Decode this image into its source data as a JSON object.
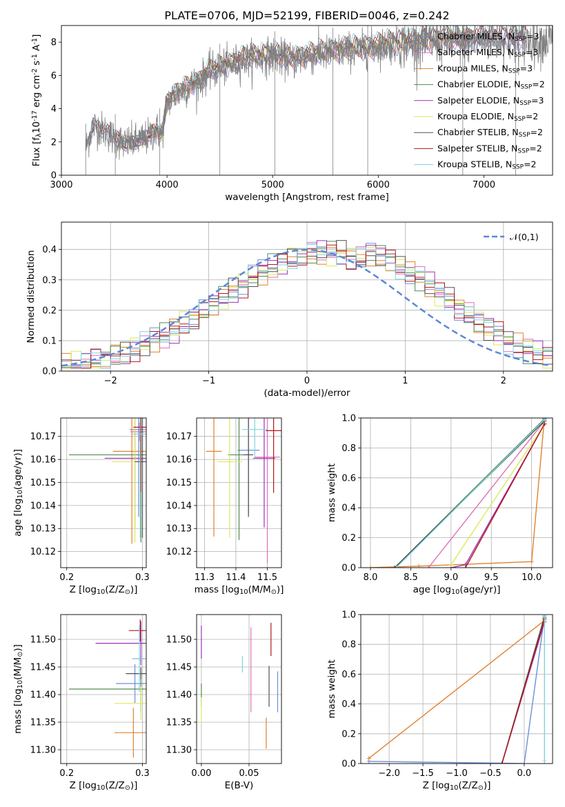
{
  "title": "PLATE=0706, MJD=52199, FIBERID=0046, z=0.242",
  "series": [
    {
      "name": "Chabrier MILES, N$_{SSP}$=3",
      "color": "#6b8ed8"
    },
    {
      "name": "Salpeter MILES, N$_{SSP}$=3",
      "color": "#e070b4"
    },
    {
      "name": "Kroupa MILES, N$_{SSP}$=3",
      "color": "#e0812e"
    },
    {
      "name": "Chabrier ELODIE, N$_{SSP}$=2",
      "color": "#4f8a52"
    },
    {
      "name": "Salpeter ELODIE, N$_{SSP}$=3",
      "color": "#9c30b8"
    },
    {
      "name": "Kroupa ELODIE, N$_{SSP}$=2",
      "color": "#d9ea5a"
    },
    {
      "name": "Chabrier STELIB, N$_{SSP}$=2",
      "color": "#505050"
    },
    {
      "name": "Salpeter STELIB, N$_{SSP}$=2",
      "color": "#b01818"
    },
    {
      "name": "Kroupa STELIB, N$_{SSP}$=2",
      "color": "#7fd4e3"
    }
  ],
  "chart_data": [
    {
      "id": "spectrum",
      "type": "line",
      "xlabel": "wavelength [Angstrom, rest frame]",
      "ylabel": "Flux [f$_{\\lambda}$10$^{-17}$ erg cm$^{-2}$ s$^{-1}$ A$^{-1}$]",
      "xlim": [
        3000,
        7650
      ],
      "ylim": [
        0,
        9
      ],
      "xticks": [
        3000,
        4000,
        5000,
        6000,
        7000
      ],
      "yticks": [
        0,
        2,
        4,
        6,
        8
      ],
      "grid": false,
      "legend": "right",
      "data_color": "#808080",
      "continuum": {
        "x": [
          3230,
          3300,
          3400,
          3500,
          3600,
          3700,
          3800,
          3900,
          3950,
          4000,
          4100,
          4200,
          4300,
          4400,
          4500,
          4600,
          4700,
          4800,
          4900,
          5000,
          5100,
          5200,
          5300,
          5400,
          5500,
          5600,
          5700,
          5800,
          5900,
          6000,
          6100,
          6200,
          6300,
          6400,
          6500,
          6600,
          6700,
          6800,
          6900,
          7000,
          7100,
          7200,
          7300,
          7400
        ],
        "y": [
          1.6,
          3.0,
          2.7,
          2.2,
          1.9,
          2.0,
          2.2,
          2.7,
          2.4,
          4.4,
          4.9,
          5.3,
          5.6,
          6.2,
          6.4,
          6.6,
          6.9,
          7.0,
          7.1,
          7.2,
          7.0,
          6.9,
          7.1,
          7.2,
          7.3,
          7.4,
          7.5,
          7.5,
          7.6,
          7.7,
          7.8,
          7.9,
          7.9,
          8.0,
          8.0,
          8.1,
          8.1,
          8.0,
          8.1,
          8.2,
          8.2,
          8.2,
          8.1,
          8.1
        ]
      }
    },
    {
      "id": "residuals",
      "type": "histogram",
      "xlabel": "(data-model)/error",
      "ylabel": "Normed distribution",
      "xlim": [
        -2.5,
        2.5
      ],
      "ylim": [
        0,
        0.49
      ],
      "xticks": [
        -2,
        -1,
        0,
        1,
        2
      ],
      "yticks": [
        0.0,
        0.1,
        0.2,
        0.3,
        0.4
      ],
      "grid": true,
      "legend": "top-right",
      "normal_label": "$\\mathcal{N}(0,1)$",
      "normal_color": "#5b87d6",
      "bin_width": 0.1
    },
    {
      "id": "age_vs_Z",
      "type": "errorbar",
      "xlabel": "Z [log$_{10}$(Z/Z$_\\odot$)]",
      "ylabel": "age  [log$_{10}$(age/yr)]",
      "xlim": [
        0.192,
        0.305
      ],
      "ylim": [
        10.113,
        10.178
      ],
      "xticks": [
        0.2,
        0.3
      ],
      "yticks": [
        10.12,
        10.13,
        10.14,
        10.15,
        10.16,
        10.17
      ],
      "grid": true,
      "points": [
        {
          "x": 0.295,
          "y": 10.173,
          "xe": 0.012,
          "ye": 0.038
        },
        {
          "x": 0.296,
          "y": 10.172,
          "xe": 0.012,
          "ye": 0.004
        },
        {
          "x": 0.286,
          "y": 10.1635,
          "xe": 0.025,
          "ye": 0.04
        },
        {
          "x": 0.298,
          "y": 10.162,
          "xe": 0.095,
          "ye": 0.038
        },
        {
          "x": 0.29,
          "y": 10.1605,
          "xe": 0.04,
          "ye": 0.03
        },
        {
          "x": 0.29,
          "y": 10.159,
          "xe": 0.03,
          "ye": 0.035
        },
        {
          "x": 0.3,
          "y": 10.159,
          "xe": 0.01,
          "ye": 0.033
        },
        {
          "x": 0.298,
          "y": 10.174,
          "xe": 0.01,
          "ye": 0.028
        },
        {
          "x": 0.297,
          "y": 10.171,
          "xe": 0.01,
          "ye": 0.045
        }
      ]
    },
    {
      "id": "age_vs_mass",
      "type": "errorbar",
      "xlabel": "mass [log$_{10}$(M/M$_\\odot$)]",
      "ylabel": "",
      "xlim": [
        11.275,
        11.545
      ],
      "ylim": [
        10.113,
        10.178
      ],
      "xticks": [
        11.3,
        11.4,
        11.5
      ],
      "yticks": [
        10.12,
        10.13,
        10.14,
        10.15,
        10.16,
        10.17
      ],
      "grid": true,
      "points": [
        {
          "x": 11.44,
          "y": 10.164,
          "xe": 0.035,
          "ye": 0.028
        },
        {
          "x": 11.5,
          "y": 10.161,
          "xe": 0.04,
          "ye": 0.046
        },
        {
          "x": 11.33,
          "y": 10.1635,
          "xe": 0.025,
          "ye": 0.037
        },
        {
          "x": 11.41,
          "y": 10.162,
          "xe": 0.035,
          "ye": 0.037
        },
        {
          "x": 11.49,
          "y": 10.1605,
          "xe": 0.035,
          "ye": 0.03
        },
        {
          "x": 11.38,
          "y": 10.159,
          "xe": 0.04,
          "ye": 0.033
        },
        {
          "x": 11.44,
          "y": 10.162,
          "xe": 0.015,
          "ye": 0.027
        },
        {
          "x": 11.52,
          "y": 10.1725,
          "xe": 0.025,
          "ye": 0.027
        },
        {
          "x": 11.46,
          "y": 10.173,
          "xe": 0.04,
          "ye": 0.012
        }
      ]
    },
    {
      "id": "weight_vs_age",
      "type": "line",
      "xlabel": "age  [log$_{10}$(age/yr)]",
      "ylabel": "mass weight",
      "xlim": [
        7.88,
        10.26
      ],
      "ylim": [
        0,
        1
      ],
      "xticks": [
        8.0,
        8.5,
        9.0,
        9.5,
        10.0
      ],
      "yticks": [
        0.0,
        0.2,
        0.4,
        0.6,
        0.8,
        1.0
      ],
      "grid": true,
      "lines": [
        {
          "x": [
            8.3,
            10.16
          ],
          "y": [
            0.0,
            0.99
          ]
        },
        {
          "x": [
            8.72,
            10.16
          ],
          "y": [
            0.0,
            0.98
          ]
        },
        {
          "x": [
            8.0,
            8.6,
            10.0,
            10.15
          ],
          "y": [
            0.0,
            0.01,
            0.04,
            0.95
          ]
        },
        {
          "x": [
            8.3,
            10.16
          ],
          "y": [
            0.0,
            0.995
          ]
        },
        {
          "x": [
            9.0,
            9.18,
            10.16
          ],
          "y": [
            0.0,
            0.02,
            0.96
          ]
        },
        {
          "x": [
            9.0,
            10.15
          ],
          "y": [
            0.02,
            0.95
          ]
        },
        {
          "x": [
            8.3,
            10.16
          ],
          "y": [
            0.0,
            0.98
          ]
        },
        {
          "x": [
            9.18,
            10.16
          ],
          "y": [
            0.0,
            0.96
          ]
        },
        {
          "x": [
            8.32,
            10.16
          ],
          "y": [
            0.0,
            0.99
          ]
        }
      ]
    },
    {
      "id": "mass_vs_Z",
      "type": "errorbar",
      "xlabel": "Z [log$_{10}$(Z/Z$_\\odot$)]",
      "ylabel": "mass [log$_{10}$(M/M$_\\odot$)]",
      "xlim": [
        0.192,
        0.305
      ],
      "ylim": [
        11.275,
        11.545
      ],
      "xticks": [
        0.2,
        0.3
      ],
      "yticks": [
        11.3,
        11.35,
        11.4,
        11.45,
        11.5
      ],
      "grid": true,
      "points": [
        {
          "x": 0.29,
          "y": 11.42,
          "xe": 0.025,
          "ye": 0.035
        },
        {
          "x": 0.298,
          "y": 11.465,
          "xe": 0.01,
          "ye": 0.005
        },
        {
          "x": 0.288,
          "y": 11.331,
          "xe": 0.025,
          "ye": 0.045
        },
        {
          "x": 0.298,
          "y": 11.41,
          "xe": 0.095,
          "ye": 0.04
        },
        {
          "x": 0.298,
          "y": 11.493,
          "xe": 0.06,
          "ye": 0.04
        },
        {
          "x": 0.298,
          "y": 11.384,
          "xe": 0.035,
          "ye": 0.03
        },
        {
          "x": 0.298,
          "y": 11.438,
          "xe": 0.02,
          "ye": 0.01
        },
        {
          "x": 0.297,
          "y": 11.516,
          "xe": 0.015,
          "ye": 0.02
        },
        {
          "x": 0.296,
          "y": 11.465,
          "xe": 0.01,
          "ye": 0.06
        }
      ]
    },
    {
      "id": "mass_vs_ebv",
      "type": "errorbar",
      "xlabel": "E(B-V)",
      "ylabel": "",
      "xlim": [
        -0.005,
        0.084
      ],
      "ylim": [
        11.275,
        11.545
      ],
      "xticks": [
        0.0,
        0.05
      ],
      "yticks": [
        11.3,
        11.35,
        11.4,
        11.45,
        11.5
      ],
      "grid": true,
      "points": [
        {
          "x": 0.08,
          "y": 11.405,
          "xe": 0,
          "ye": 0.037
        },
        {
          "x": 0.052,
          "y": 11.445,
          "xe": 0,
          "ye": 0.077
        },
        {
          "x": 0.068,
          "y": 11.33,
          "xe": 0,
          "ye": 0.028
        },
        {
          "x": 0.0,
          "y": 11.4,
          "xe": 0,
          "ye": 0.02
        },
        {
          "x": 0.0,
          "y": 11.495,
          "xe": 0,
          "ye": 0.03
        },
        {
          "x": 0.0,
          "y": 11.37,
          "xe": 0,
          "ye": 0.025
        },
        {
          "x": 0.071,
          "y": 11.415,
          "xe": 0,
          "ye": 0.037
        },
        {
          "x": 0.073,
          "y": 11.5,
          "xe": 0,
          "ye": 0.03
        },
        {
          "x": 0.043,
          "y": 11.455,
          "xe": 0,
          "ye": 0.015
        }
      ]
    },
    {
      "id": "weight_vs_Z",
      "type": "line",
      "xlabel": "Z [log$_{10}$(Z/Z$_\\odot$)]",
      "ylabel": "mass weight",
      "xlim": [
        -2.42,
        0.42
      ],
      "ylim": [
        0,
        1
      ],
      "xticks": [
        -2.0,
        -1.5,
        -1.0,
        -0.5,
        0.0
      ],
      "yticks": [
        0.0,
        0.2,
        0.4,
        0.6,
        0.8,
        1.0
      ],
      "grid": true,
      "lines": [
        {
          "x": [
            -2.3,
            0.0,
            0.3
          ],
          "y": [
            0.015,
            0.0,
            0.99
          ]
        },
        {
          "x": [
            -0.33,
            0.3
          ],
          "y": [
            0.0,
            0.96
          ]
        },
        {
          "x": [
            -2.3,
            0.3
          ],
          "y": [
            0.035,
            0.96
          ]
        },
        {
          "x": [
            -0.33,
            0.3
          ],
          "y": [
            0.0,
            0.99
          ]
        },
        {
          "x": [
            -0.33,
            0.3
          ],
          "y": [
            0.0,
            0.95
          ]
        },
        {
          "x": [
            0.3,
            0.3
          ],
          "y": [
            0.02,
            0.96
          ]
        },
        {
          "x": [
            -0.33,
            0.3
          ],
          "y": [
            0.0,
            0.98
          ]
        },
        {
          "x": [
            -0.33,
            0.3
          ],
          "y": [
            0.0,
            0.97
          ]
        },
        {
          "x": [
            0.3,
            0.3
          ],
          "y": [
            0.0,
            0.99
          ]
        }
      ]
    }
  ]
}
